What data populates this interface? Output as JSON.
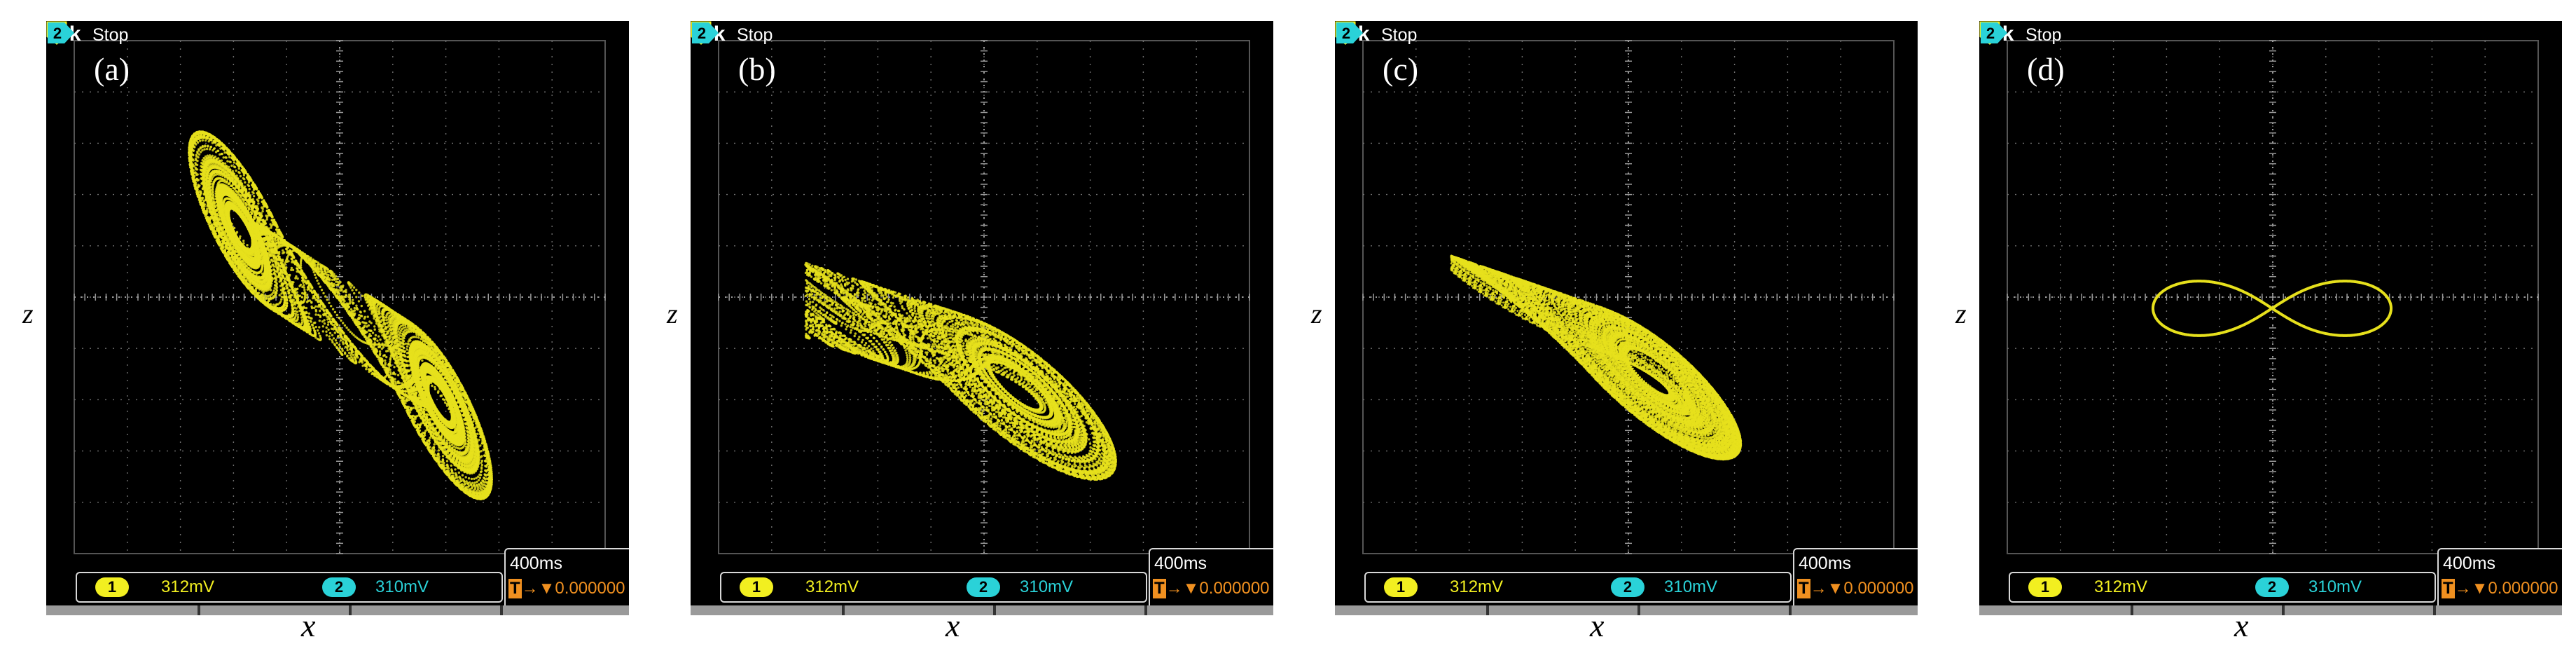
{
  "panels": [
    {
      "label": "(a)",
      "attractor": "double-scroll"
    },
    {
      "label": "(b)",
      "attractor": "single-scroll"
    },
    {
      "label": "(c)",
      "attractor": "periodic-band"
    },
    {
      "label": "(d)",
      "attractor": "period-2-figure-eight"
    }
  ],
  "scope": {
    "brand": "Tek",
    "run_state": "Stop",
    "trigger_badge": "1",
    "ch2_marker": "2",
    "ch1_badge": "1",
    "ch1_scale": "312mV",
    "ch2_badge": "2",
    "ch2_scale": "310mV",
    "timebase": "400ms",
    "trigger_icon": "T",
    "trigger_readout": "→▼0.000000"
  },
  "axes": {
    "xlabel": "x",
    "ylabel": "z"
  },
  "colors": {
    "trace": "#e6e01c",
    "grid": "#707070",
    "ch1": "#f2ef20",
    "ch2": "#2ad2d8",
    "trigger": "#f09020"
  }
}
